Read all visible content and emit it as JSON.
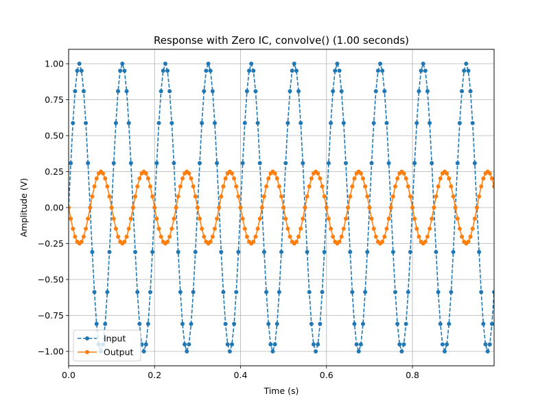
{
  "chart_data": {
    "type": "line",
    "title": "Response with Zero IC, convolve() (1.00 seconds)",
    "xlabel": "Time (s)",
    "ylabel": "Amplitude (V)",
    "xlim": [
      0.0,
      0.99
    ],
    "ylim": [
      -1.1,
      1.1
    ],
    "xticks": [
      0.0,
      0.2,
      0.4,
      0.6,
      0.8
    ],
    "xtick_labels": [
      "0.0",
      "0.2",
      "0.4",
      "0.6",
      "0.8"
    ],
    "yticks": [
      -1.0,
      -0.75,
      -0.5,
      -0.25,
      0.0,
      0.25,
      0.5,
      0.75,
      1.0
    ],
    "ytick_labels": [
      "−1.00",
      "−0.75",
      "−0.50",
      "−0.25",
      "0.00",
      "0.25",
      "0.50",
      "0.75",
      "1.00"
    ],
    "grid": true,
    "legend_position": "lower-left",
    "sample_interval": 0.005,
    "num_samples": 199,
    "series": [
      {
        "name": "Input",
        "color": "#1f77b4",
        "line_style": "dashed",
        "marker": "circle",
        "signal": "sine",
        "frequency_hz": 10,
        "amplitude": 1.0,
        "phase_deg": 0
      },
      {
        "name": "Output",
        "color": "#ff7f0e",
        "line_style": "solid",
        "marker": "circle",
        "signal": "sine",
        "frequency_hz": 10,
        "amplitude": 0.25,
        "phase_deg": 180
      }
    ]
  }
}
